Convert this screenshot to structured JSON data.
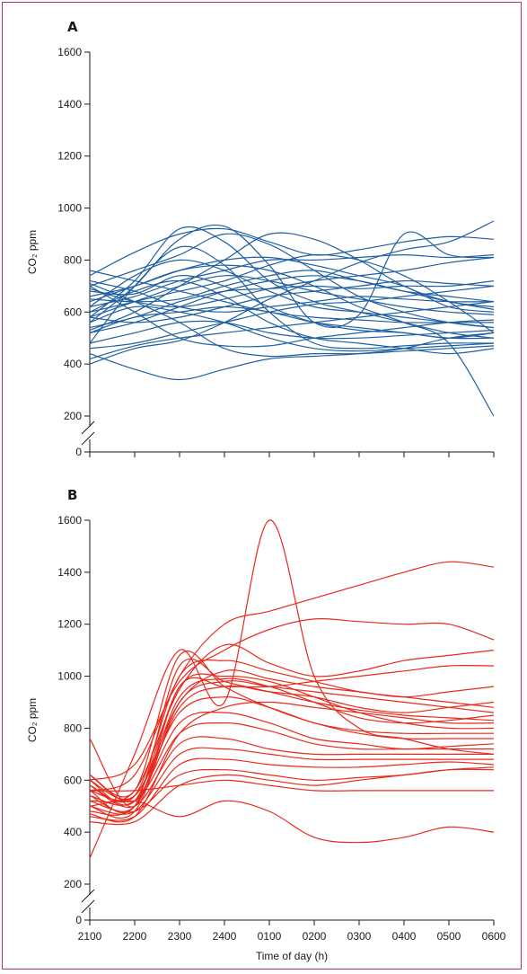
{
  "chart_data": [
    {
      "type": "line",
      "panel_label": "A",
      "ylabel": "CO₂ ppm",
      "xlabel": "",
      "ylim": [
        0,
        1600
      ],
      "y_ticks": [
        0,
        200,
        400,
        600,
        800,
        1000,
        1200,
        1400,
        1600
      ],
      "y_axis_break": [
        0,
        200
      ],
      "x_ticks": [
        "2100",
        "2200",
        "2300",
        "2400",
        "0100",
        "0200",
        "0300",
        "0400",
        "0500",
        "0600"
      ],
      "x": [
        0,
        1,
        2,
        3,
        4,
        5,
        6,
        7,
        8,
        9
      ],
      "color": "#1f5fa0",
      "series": [
        {
          "values": [
            400,
            460,
            490,
            560,
            650,
            720,
            790,
            840,
            870,
            950
          ]
        },
        {
          "values": [
            740,
            830,
            900,
            920,
            870,
            820,
            840,
            870,
            890,
            880
          ]
        },
        {
          "values": [
            560,
            700,
            880,
            930,
            780,
            560,
            590,
            900,
            820,
            810
          ]
        },
        {
          "values": [
            580,
            720,
            920,
            870,
            720,
            640,
            600,
            560,
            520,
            500
          ]
        },
        {
          "values": [
            480,
            700,
            850,
            780,
            600,
            480,
            460,
            470,
            480,
            480
          ]
        },
        {
          "values": [
            680,
            670,
            740,
            700,
            620,
            560,
            530,
            520,
            500,
            520
          ]
        },
        {
          "values": [
            620,
            660,
            720,
            760,
            800,
            800,
            810,
            820,
            810,
            820
          ]
        },
        {
          "values": [
            560,
            620,
            600,
            560,
            500,
            460,
            450,
            460,
            470,
            480
          ]
        },
        {
          "values": [
            710,
            640,
            560,
            460,
            430,
            440,
            440,
            450,
            460,
            470
          ]
        },
        {
          "values": [
            650,
            640,
            650,
            700,
            740,
            760,
            720,
            680,
            660,
            640
          ]
        },
        {
          "values": [
            700,
            600,
            500,
            470,
            470,
            500,
            520,
            540,
            560,
            570
          ]
        },
        {
          "values": [
            420,
            470,
            500,
            520,
            540,
            560,
            580,
            600,
            620,
            640
          ]
        },
        {
          "values": [
            440,
            380,
            340,
            380,
            420,
            430,
            440,
            460,
            500,
            520
          ]
        },
        {
          "values": [
            540,
            580,
            640,
            680,
            690,
            700,
            690,
            700,
            700,
            720
          ]
        },
        {
          "values": [
            520,
            580,
            600,
            620,
            600,
            560,
            540,
            520,
            500,
            500
          ]
        },
        {
          "values": [
            600,
            680,
            720,
            660,
            560,
            500,
            480,
            460,
            440,
            460
          ]
        },
        {
          "values": [
            660,
            700,
            760,
            800,
            810,
            780,
            740,
            700,
            620,
            600
          ]
        },
        {
          "values": [
            620,
            740,
            800,
            760,
            680,
            620,
            600,
            580,
            560,
            540
          ]
        },
        {
          "values": [
            700,
            760,
            820,
            900,
            860,
            760,
            660,
            600,
            560,
            540
          ]
        },
        {
          "values": [
            580,
            560,
            580,
            620,
            660,
            680,
            700,
            720,
            710,
            700
          ]
        },
        {
          "values": [
            600,
            640,
            680,
            720,
            780,
            820,
            800,
            740,
            640,
            520
          ]
        },
        {
          "values": [
            480,
            520,
            560,
            560,
            520,
            500,
            500,
            510,
            520,
            530
          ]
        },
        {
          "values": [
            640,
            700,
            760,
            780,
            760,
            700,
            620,
            560,
            480,
            200
          ]
        },
        {
          "values": [
            530,
            600,
            700,
            800,
            900,
            880,
            800,
            700,
            640,
            620
          ]
        },
        {
          "values": [
            760,
            720,
            680,
            640,
            600,
            580,
            570,
            560,
            560,
            560
          ]
        },
        {
          "values": [
            720,
            680,
            620,
            600,
            620,
            640,
            660,
            650,
            640,
            640
          ]
        },
        {
          "values": [
            580,
            640,
            700,
            740,
            720,
            680,
            650,
            620,
            600,
            590
          ]
        },
        {
          "values": [
            460,
            480,
            520,
            560,
            600,
            630,
            640,
            660,
            680,
            700
          ]
        },
        {
          "values": [
            690,
            640,
            620,
            650,
            690,
            720,
            740,
            760,
            790,
            810
          ]
        },
        {
          "values": [
            520,
            560,
            620,
            680,
            720,
            740,
            720,
            680,
            640,
            610
          ]
        }
      ]
    },
    {
      "type": "line",
      "panel_label": "B",
      "ylabel": "CO₂ ppm",
      "xlabel": "Time of day (h)",
      "ylim": [
        0,
        1600
      ],
      "y_ticks": [
        0,
        200,
        400,
        600,
        800,
        1000,
        1200,
        1400,
        1600
      ],
      "y_axis_break": [
        0,
        200
      ],
      "x_ticks": [
        "2100",
        "2200",
        "2300",
        "2400",
        "0100",
        "0200",
        "0300",
        "0400",
        "0500",
        "0600"
      ],
      "x": [
        0,
        1,
        2,
        3,
        4,
        5,
        6,
        7,
        8,
        9
      ],
      "color": "#e8291c",
      "series": [
        {
          "values": [
            300,
            700,
            1100,
            900,
            1600,
            1000,
            800,
            760,
            720,
            700
          ]
        },
        {
          "values": [
            560,
            620,
            1000,
            1200,
            1250,
            1300,
            1350,
            1400,
            1440,
            1420
          ]
        },
        {
          "values": [
            600,
            660,
            980,
            1100,
            1180,
            1220,
            1210,
            1200,
            1200,
            1140
          ]
        },
        {
          "values": [
            520,
            560,
            950,
            1120,
            1050,
            1000,
            1020,
            1060,
            1080,
            1100
          ]
        },
        {
          "values": [
            500,
            520,
            460,
            520,
            480,
            380,
            360,
            380,
            420,
            400
          ]
        },
        {
          "values": [
            560,
            560,
            580,
            600,
            580,
            560,
            560,
            560,
            560,
            560
          ]
        },
        {
          "values": [
            760,
            500,
            960,
            960,
            960,
            980,
            1000,
            1020,
            1040,
            1040
          ]
        },
        {
          "values": [
            600,
            540,
            900,
            1020,
            990,
            960,
            940,
            920,
            940,
            960
          ]
        },
        {
          "values": [
            480,
            500,
            880,
            960,
            940,
            920,
            880,
            860,
            880,
            900
          ]
        },
        {
          "values": [
            560,
            540,
            860,
            920,
            880,
            820,
            790,
            780,
            780,
            780
          ]
        },
        {
          "values": [
            540,
            520,
            820,
            860,
            820,
            760,
            740,
            720,
            730,
            740
          ]
        },
        {
          "values": [
            620,
            520,
            780,
            820,
            790,
            740,
            720,
            720,
            720,
            720
          ]
        },
        {
          "values": [
            580,
            500,
            740,
            760,
            720,
            700,
            700,
            700,
            700,
            700
          ]
        },
        {
          "values": [
            500,
            480,
            700,
            720,
            700,
            680,
            680,
            680,
            680,
            680
          ]
        },
        {
          "values": [
            460,
            460,
            660,
            680,
            660,
            650,
            650,
            660,
            670,
            660
          ]
        },
        {
          "values": [
            520,
            480,
            620,
            640,
            620,
            600,
            610,
            620,
            640,
            650
          ]
        },
        {
          "values": [
            440,
            440,
            580,
            620,
            600,
            580,
            600,
            620,
            640,
            640
          ]
        },
        {
          "values": [
            600,
            520,
            960,
            1000,
            980,
            920,
            860,
            820,
            800,
            800
          ]
        },
        {
          "values": [
            540,
            500,
            920,
            990,
            960,
            900,
            840,
            820,
            830,
            850
          ]
        },
        {
          "values": [
            580,
            540,
            1000,
            1060,
            1020,
            980,
            940,
            920,
            900,
            880
          ]
        },
        {
          "values": [
            500,
            480,
            900,
            980,
            960,
            940,
            920,
            900,
            880,
            860
          ]
        },
        {
          "values": [
            620,
            560,
            1080,
            960,
            880,
            820,
            780,
            760,
            760,
            760
          ]
        },
        {
          "values": [
            470,
            460,
            780,
            880,
            900,
            880,
            860,
            840,
            820,
            820
          ]
        },
        {
          "values": [
            560,
            500,
            1040,
            980,
            940,
            900,
            870,
            850,
            840,
            830
          ]
        }
      ]
    }
  ]
}
